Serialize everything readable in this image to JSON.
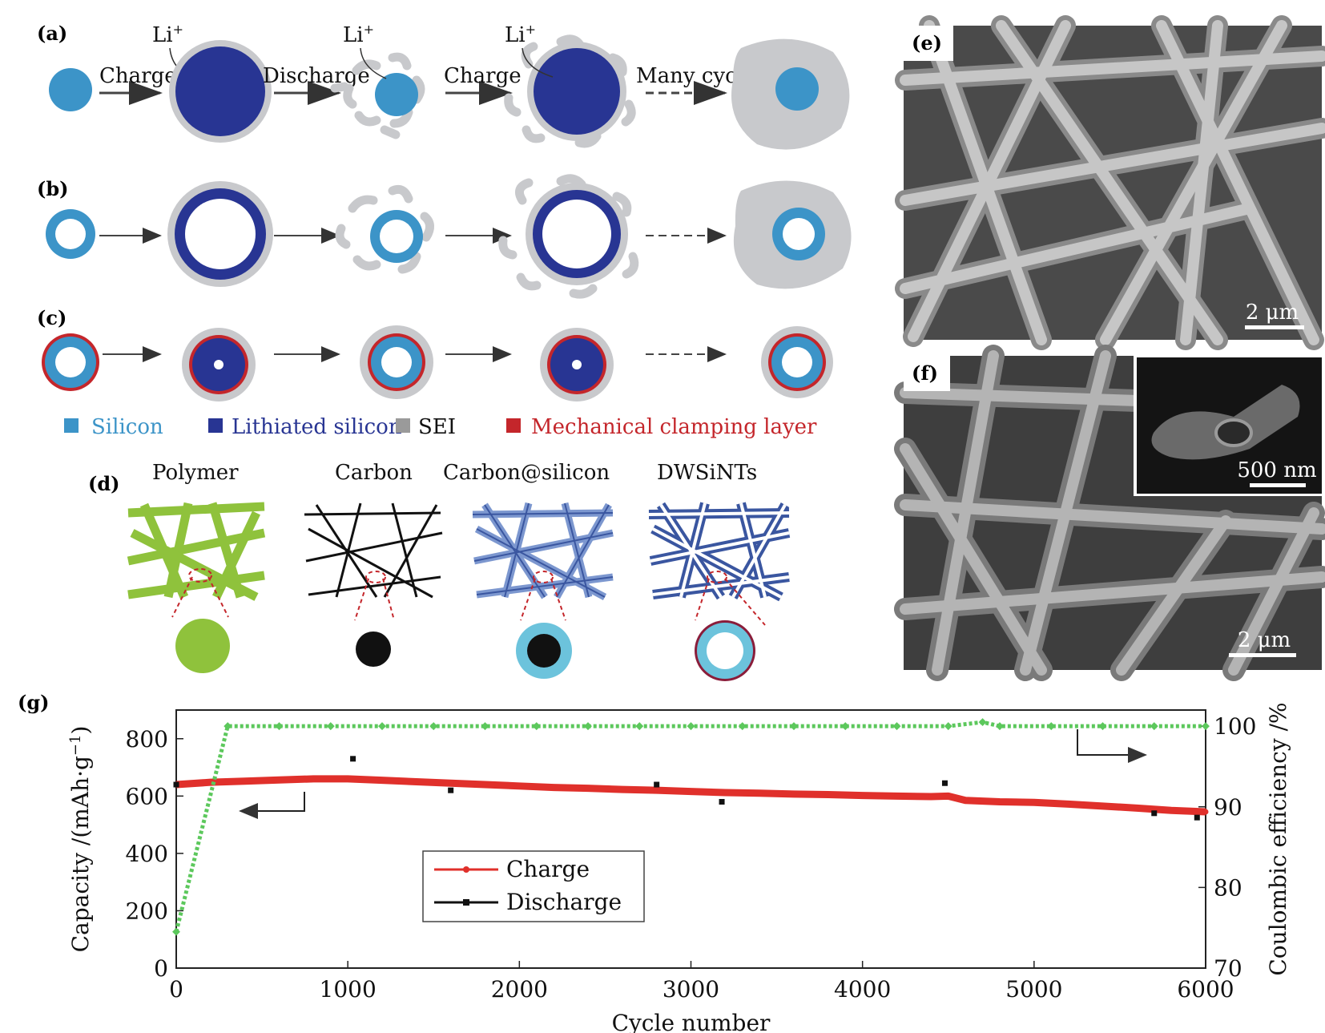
{
  "panels": {
    "a": {
      "label": "(a)",
      "li_label": "Li",
      "li_sup": "+",
      "steps": [
        "Charge",
        "Discharge",
        "Charge",
        "Many cycles"
      ]
    },
    "b": {
      "label": "(b)"
    },
    "c": {
      "label": "(c)"
    },
    "legend": {
      "silicon": "Silicon",
      "lithiated": "Lithiated silicon",
      "sei": "SEI",
      "clamping": "Mechanical clamping layer"
    },
    "d": {
      "label": "(d)",
      "titles": [
        "Polymer",
        "Carbon",
        "Carbon@silicon",
        "DWSiNTs"
      ]
    },
    "e": {
      "label": "(e)",
      "scale_bar": "2 μm"
    },
    "f": {
      "label": "(f)",
      "scale_bar": "2 μm",
      "inset_scale_bar": "500 nm"
    },
    "g": {
      "label": "(g)"
    }
  },
  "colors": {
    "silicon": "#3c94c8",
    "lithiated": "#283593",
    "sei": "#c8c9cc",
    "clamping": "#c4262b",
    "polymer": "#8fc23c",
    "carbon": "#111111",
    "charge_series": "#e0302b",
    "discharge_series": "#111111",
    "efficiency_series": "#5cc85c"
  },
  "chart_data": {
    "type": "scatter",
    "title": "",
    "xlabel": "Cycle number",
    "ylabel_left": "Capacity /(mAh·g",
    "ylabel_left_sup": "−1",
    "ylabel_left_end": ")",
    "ylabel_right": "Coulombic efficiency /%",
    "x_ticks": [
      0,
      1000,
      2000,
      3000,
      4000,
      5000,
      6000
    ],
    "y_left_ticks": [
      0,
      200,
      400,
      600,
      800
    ],
    "y_right_ticks": [
      70,
      80,
      90,
      100
    ],
    "xlim": [
      0,
      6000
    ],
    "ylim_left": [
      0,
      900
    ],
    "ylim_right": [
      70,
      102
    ],
    "legend_position": "lower-left-center",
    "series": [
      {
        "name": "Charge",
        "axis": "left",
        "x": [
          0,
          200,
          400,
          600,
          800,
          1000,
          1200,
          1400,
          1600,
          1800,
          2000,
          2200,
          2400,
          2600,
          2800,
          3000,
          3200,
          3400,
          3600,
          3800,
          4000,
          4200,
          4400,
          4500,
          4600,
          4800,
          5000,
          5200,
          5400,
          5600,
          5800,
          6000
        ],
        "y": [
          640,
          648,
          652,
          656,
          660,
          660,
          655,
          650,
          645,
          640,
          635,
          630,
          627,
          623,
          620,
          616,
          612,
          610,
          607,
          605,
          602,
          600,
          598,
          600,
          585,
          580,
          578,
          572,
          565,
          558,
          550,
          545
        ]
      },
      {
        "name": "Discharge",
        "axis": "left",
        "x": [
          0,
          1030,
          1600,
          2800,
          3180,
          4480,
          5700,
          5950
        ],
        "y": [
          640,
          730,
          620,
          640,
          580,
          645,
          540,
          525
        ]
      },
      {
        "name": "",
        "axis": "right",
        "x": [
          0,
          300,
          600,
          900,
          1200,
          1500,
          1800,
          2100,
          2400,
          2700,
          3000,
          3300,
          3600,
          3900,
          4200,
          4500,
          4700,
          4800,
          5100,
          5400,
          5700,
          6000
        ],
        "y": [
          74.5,
          100,
          100,
          100,
          100,
          100,
          100,
          100,
          100,
          100,
          100,
          100,
          100,
          100,
          100,
          100,
          100.5,
          100,
          100,
          100,
          100,
          100
        ]
      }
    ]
  }
}
